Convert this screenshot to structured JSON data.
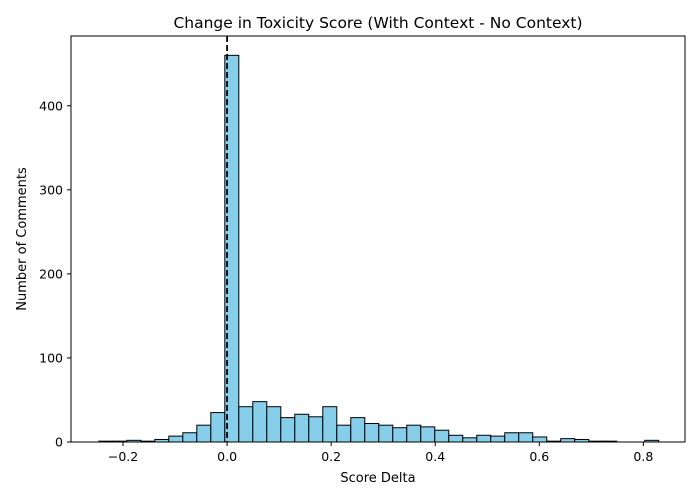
{
  "chart_data": {
    "type": "bar",
    "subtype": "histogram",
    "title": "Change in Toxicity Score (With Context - No Context)",
    "xlabel": "Score Delta",
    "ylabel": "Number of Comments",
    "xlim": [
      -0.3,
      0.88
    ],
    "ylim": [
      0,
      483
    ],
    "xticks": [
      -0.2,
      0.0,
      0.2,
      0.4,
      0.6,
      0.8
    ],
    "xtick_labels": [
      "−0.2",
      "0.0",
      "0.2",
      "0.4",
      "0.6",
      "0.8"
    ],
    "yticks": [
      0,
      100,
      200,
      300,
      400
    ],
    "ytick_labels": [
      "0",
      "100",
      "200",
      "300",
      "400"
    ],
    "bin_width": 0.0269,
    "bin_start": -0.2465,
    "values": [
      1,
      1,
      2,
      1,
      3,
      7,
      11,
      20,
      35,
      460,
      42,
      48,
      42,
      29,
      33,
      30,
      42,
      20,
      29,
      22,
      20,
      17,
      20,
      18,
      14,
      8,
      5,
      8,
      7,
      11,
      11,
      6,
      1,
      4,
      3,
      1,
      1,
      0,
      0,
      2
    ],
    "reference_line": {
      "x": 0.0,
      "style": "dashed",
      "color": "#000000"
    },
    "bar_color": "#87ceeb",
    "edge_color": "#000000",
    "grid": false,
    "legend": false
  }
}
